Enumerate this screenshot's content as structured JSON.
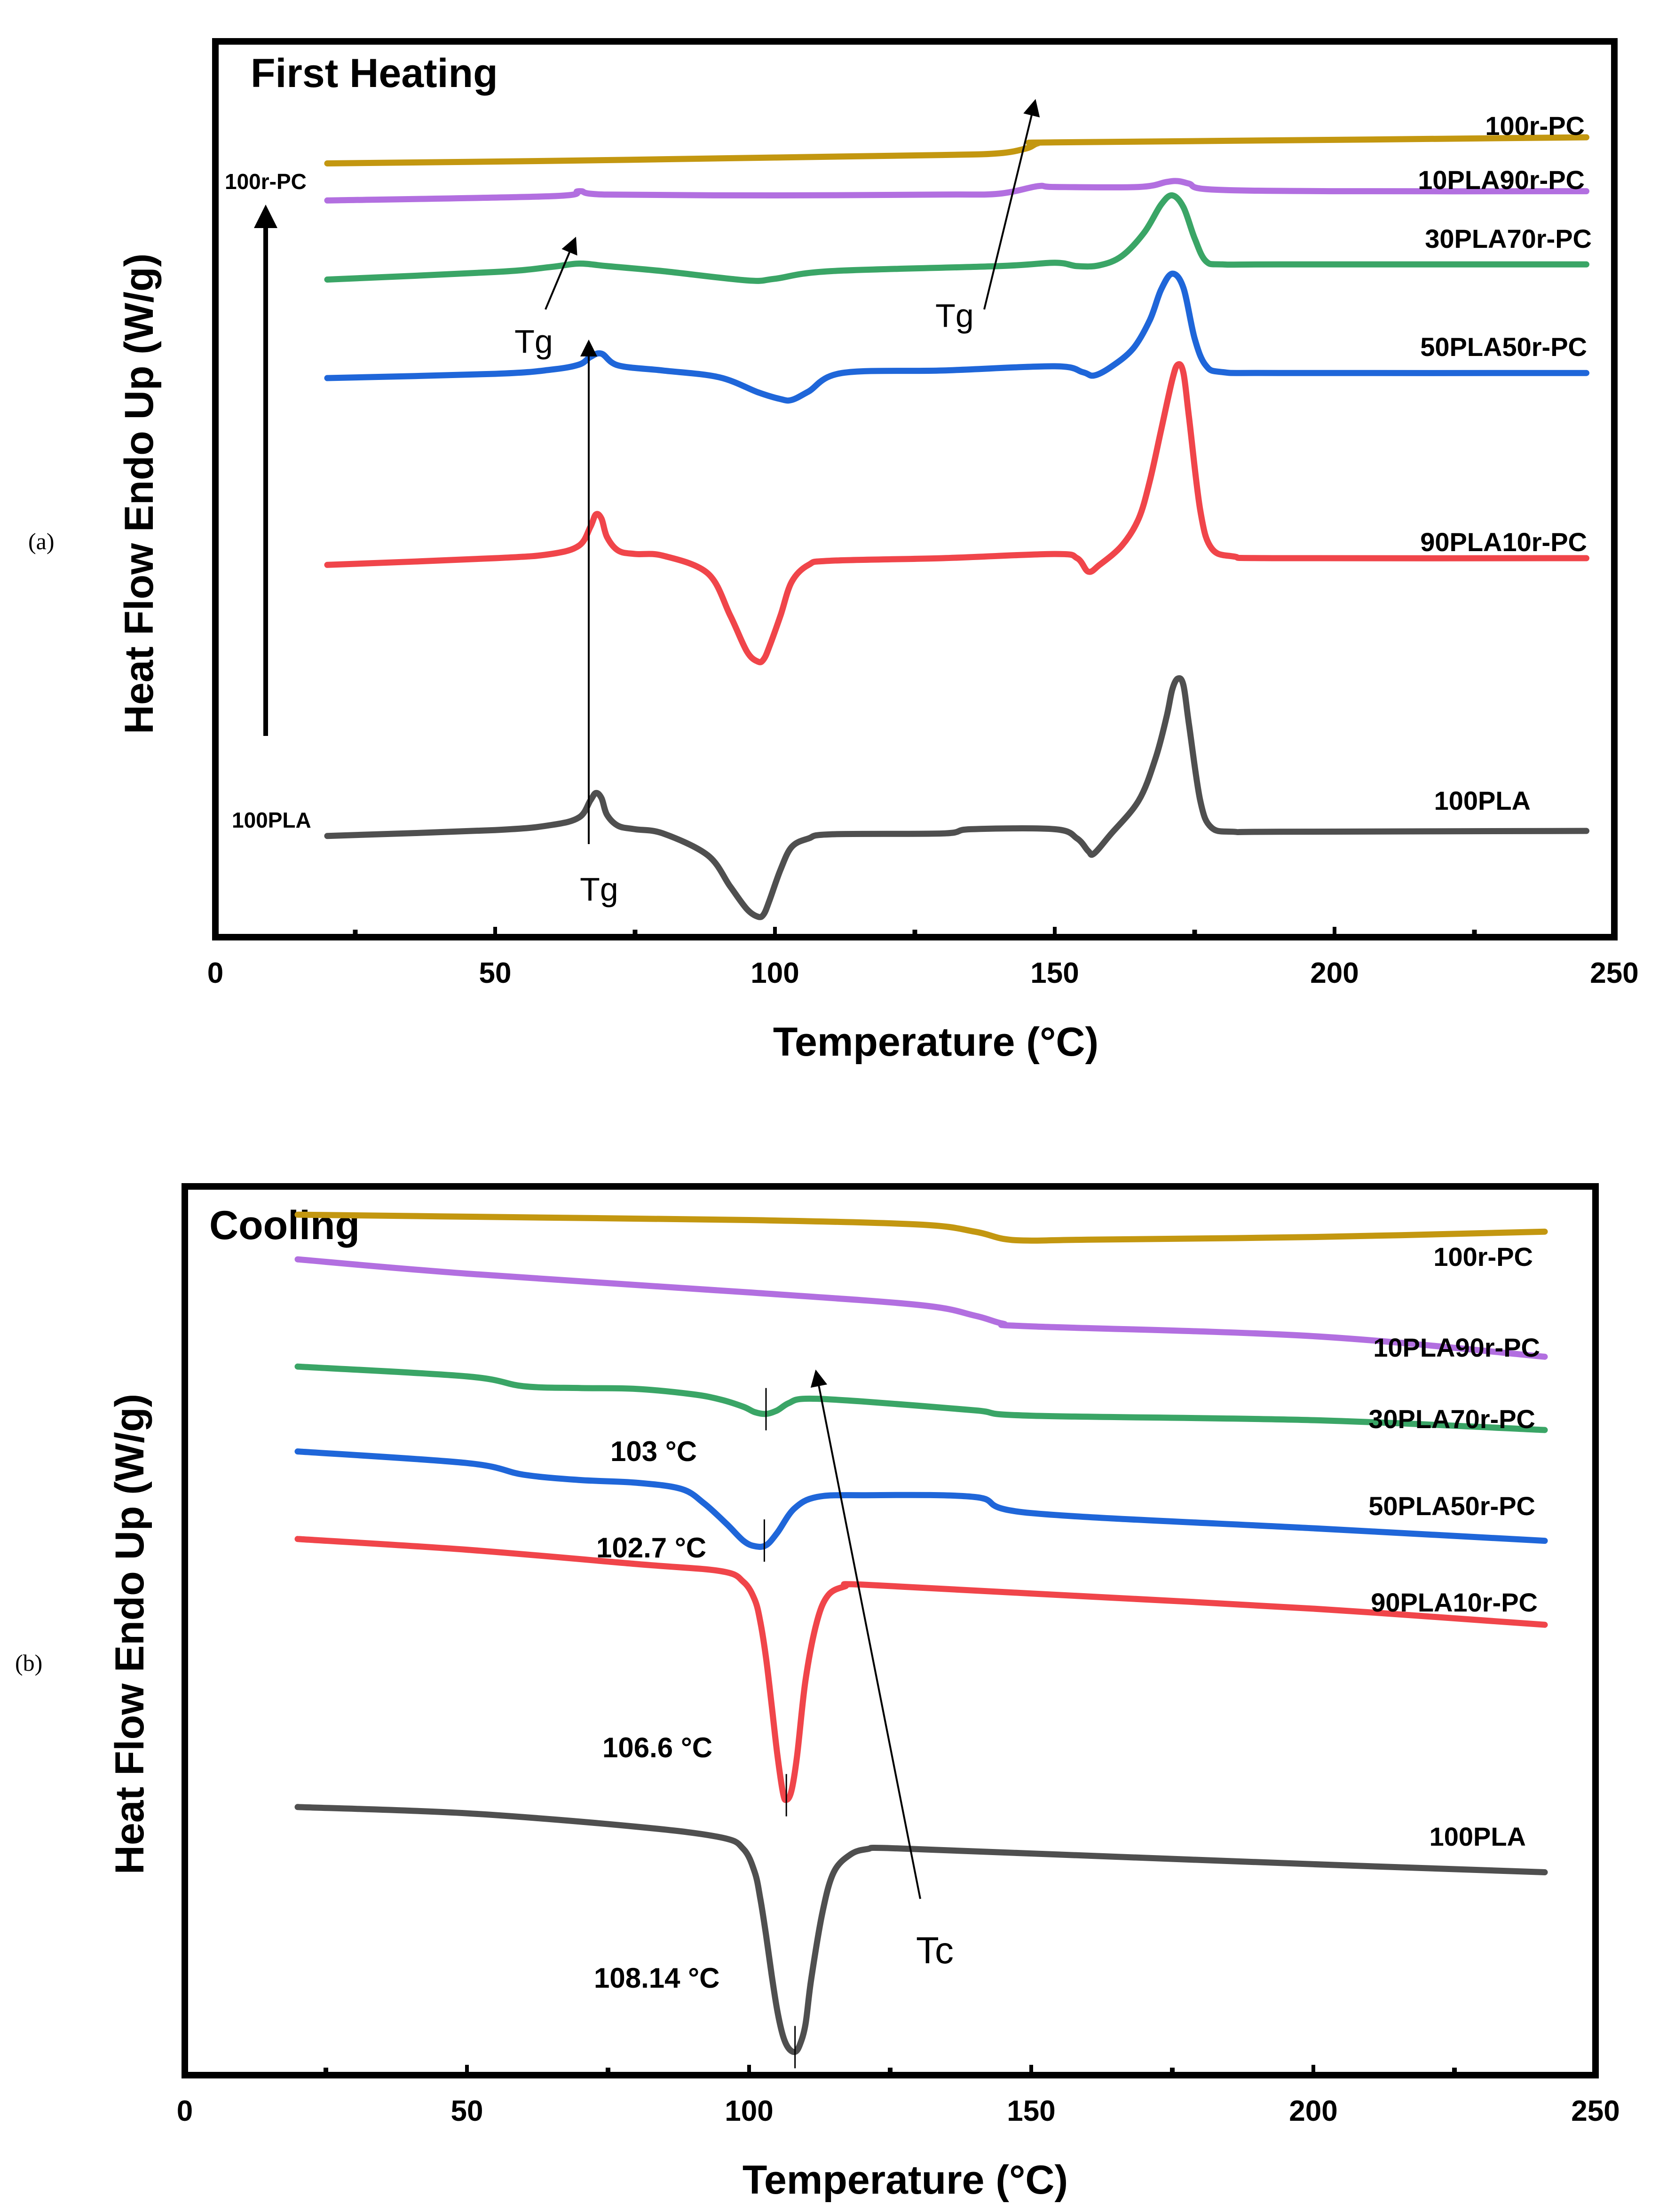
{
  "colors": {
    "100r-PC": "#c39710",
    "10PLA90r-PC": "#b26fe0",
    "30PLA70r-PC": "#3aa566",
    "50PLA50r-PC": "#1f66d9",
    "90PLA10r-PC": "#f0454a",
    "100PLA": "#4f4f4f",
    "frame": "#000000"
  },
  "chart_data": [
    {
      "type": "line",
      "panel_label": "(a)",
      "title": "First Heating",
      "xlabel": "Temperature (°C)",
      "ylabel": "Heat Flow Endo Up (W/g)",
      "xlim": [
        0,
        250
      ],
      "xticks": [
        "0",
        "50",
        "100",
        "150",
        "200",
        "250"
      ],
      "ylim": [
        0,
        100
      ],
      "series": [
        {
          "name": "100r-PC",
          "color": "#c39710",
          "x": [
            20,
            60,
            100,
            130,
            140,
            145,
            147,
            150,
            200,
            245
          ],
          "y": [
            91.2,
            91.5,
            91.9,
            92.2,
            92.4,
            93.0,
            93.6,
            93.7,
            94.0,
            94.3
          ]
        },
        {
          "name": "10PLA90r-PC",
          "color": "#b26fe0",
          "x": [
            20,
            60,
            65,
            70,
            100,
            130,
            140,
            147,
            150,
            165,
            170,
            172,
            174,
            178,
            200,
            245
          ],
          "y": [
            86.8,
            87.3,
            87.9,
            87.5,
            87.4,
            87.5,
            87.6,
            88.5,
            88.4,
            88.4,
            89.0,
            89.1,
            88.8,
            88.1,
            87.9,
            87.9
          ]
        },
        {
          "name": "30PLA70r-PC",
          "color": "#3aa566",
          "x": [
            20,
            50,
            60,
            65,
            70,
            80,
            95,
            100,
            110,
            140,
            150,
            154,
            158,
            162,
            166,
            169,
            171,
            173,
            175,
            177,
            180,
            190,
            245
          ],
          "y": [
            77.4,
            78.3,
            78.9,
            79.3,
            79.0,
            78.4,
            77.3,
            77.5,
            78.4,
            79.0,
            79.4,
            79.0,
            79.1,
            80.2,
            83.0,
            86.3,
            87.4,
            86.0,
            82.3,
            79.6,
            79.2,
            79.2,
            79.2
          ]
        },
        {
          "name": "50PLA50r-PC",
          "color": "#1f66d9",
          "x": [
            20,
            50,
            60,
            65,
            67,
            69,
            72,
            80,
            90,
            97,
            101,
            103,
            106,
            112,
            130,
            150,
            155,
            157,
            160,
            164,
            167,
            169,
            171,
            173,
            175,
            177,
            180,
            190,
            245
          ],
          "y": [
            65.7,
            66.2,
            66.7,
            67.3,
            68.2,
            68.6,
            67.2,
            66.6,
            65.8,
            64.0,
            63.2,
            63.1,
            64.1,
            66.3,
            66.6,
            67.1,
            66.4,
            66.0,
            67.0,
            69.2,
            72.6,
            76.2,
            78.1,
            76.4,
            70.4,
            67.2,
            66.4,
            66.3,
            66.3
          ]
        },
        {
          "name": "90PLA10r-PC",
          "color": "#f0454a",
          "x": [
            20,
            50,
            60,
            65,
            67,
            68,
            69,
            70,
            72,
            75,
            80,
            88,
            92,
            95,
            97,
            98,
            99,
            101,
            103,
            106,
            110,
            130,
            150,
            154,
            156,
            158,
            162,
            165,
            167,
            169,
            171,
            172,
            173,
            174,
            176,
            178,
            182,
            190,
            245
          ],
          "y": [
            43.5,
            44.3,
            44.8,
            45.8,
            48.0,
            49.5,
            49.0,
            46.8,
            45.2,
            44.8,
            44.6,
            42.5,
            37.5,
            33.2,
            32.0,
            32.3,
            33.8,
            37.5,
            41.5,
            43.5,
            44.0,
            44.3,
            44.8,
            44.3,
            42.7,
            43.5,
            45.8,
            49.0,
            53.5,
            59.5,
            65.5,
            67.3,
            66.3,
            61.0,
            50.0,
            45.5,
            44.5,
            44.3,
            44.3
          ]
        },
        {
          "name": "100PLA",
          "color": "#4f4f4f",
          "x": [
            20,
            50,
            60,
            65,
            67,
            68,
            69,
            70,
            72,
            75,
            80,
            88,
            92,
            95,
            97,
            98,
            99,
            101,
            103,
            106,
            110,
            130,
            135,
            150,
            154,
            156,
            157,
            160,
            165,
            168,
            170,
            171,
            172,
            173,
            174,
            176,
            178,
            182,
            190,
            245
          ],
          "y": [
            11.3,
            12.0,
            12.6,
            13.5,
            15.5,
            16.4,
            15.8,
            13.8,
            12.5,
            12.1,
            11.6,
            9.0,
            5.3,
            2.6,
            1.7,
            2.0,
            3.6,
            7.3,
            10.0,
            11.0,
            11.5,
            11.6,
            12.1,
            12.1,
            11.0,
            9.5,
            9.2,
            11.5,
            15.5,
            20.5,
            25.5,
            28.7,
            30.0,
            29.2,
            24.5,
            15.5,
            12.3,
            11.8,
            11.8,
            11.9
          ]
        }
      ],
      "curve_labels": [
        {
          "series": "100r-PC",
          "text": "100r-PC"
        },
        {
          "series": "10PLA90r-PC",
          "text": "10PLA90r-PC"
        },
        {
          "series": "30PLA70r-PC",
          "text": "30PLA70r-PC"
        },
        {
          "series": "50PLA50r-PC",
          "text": "50PLA50r-PC"
        },
        {
          "series": "90PLA10r-PC",
          "text": "90PLA10r-PC"
        },
        {
          "series": "100PLA",
          "text": "100PLA"
        }
      ],
      "annotations": {
        "arrow_top_label": "100r-PC",
        "arrow_bottom_label": "100PLA",
        "tg_labels": [
          "Tg",
          "Tg",
          "Tg"
        ]
      }
    },
    {
      "type": "line",
      "panel_label": "(b)",
      "title": "Cooling",
      "xlabel": "Temperature (°C)",
      "ylabel": "Heat Flow Endo Up (W/g)",
      "xlim": [
        0,
        250
      ],
      "xticks": [
        "0",
        "50",
        "100",
        "150",
        "200",
        "250"
      ],
      "ylim": [
        0,
        100
      ],
      "series": [
        {
          "name": "100r-PC",
          "color": "#c39710",
          "x": [
            20,
            60,
            100,
            130,
            140,
            145,
            150,
            160,
            200,
            241
          ],
          "y": [
            95.1,
            94.8,
            94.5,
            94.0,
            93.2,
            92.4,
            92.2,
            92.3,
            92.6,
            93.2
          ]
        },
        {
          "name": "10PLA90r-PC",
          "color": "#b26fe0",
          "x": [
            20,
            50,
            100,
            130,
            140,
            145,
            150,
            200,
            241
          ],
          "y": [
            90.1,
            88.5,
            86.4,
            85.0,
            83.8,
            82.9,
            82.6,
            81.5,
            79.2
          ]
        },
        {
          "name": "30PLA70r-PC",
          "color": "#3aa566",
          "x": [
            20,
            50,
            60,
            70,
            80,
            90,
            95,
            99,
            101,
            103,
            105,
            107,
            110,
            120,
            140,
            150,
            200,
            241
          ],
          "y": [
            78.1,
            77.0,
            75.9,
            75.7,
            75.6,
            75.0,
            74.4,
            73.6,
            73.0,
            72.8,
            73.2,
            74.0,
            74.5,
            74.2,
            73.2,
            72.6,
            72.1,
            71.0
          ]
        },
        {
          "name": "50PLA50r-PC",
          "color": "#1f66d9",
          "x": [
            20,
            50,
            60,
            70,
            80,
            88,
            92,
            96,
            99,
            101,
            103,
            105,
            108,
            112,
            120,
            140,
            150,
            200,
            241
          ],
          "y": [
            68.6,
            67.3,
            66.0,
            65.4,
            65.1,
            64.4,
            62.8,
            60.5,
            58.6,
            58.0,
            58.1,
            59.5,
            62.2,
            63.5,
            63.7,
            63.5,
            61.7,
            60.0,
            58.6
          ]
        },
        {
          "name": "90PLA10r-PC",
          "color": "#f0454a",
          "x": [
            20,
            50,
            80,
            95,
            99,
            101,
            102,
            103,
            104,
            105,
            106,
            106.6,
            107.5,
            108.5,
            110,
            112,
            114,
            117,
            120,
            150,
            200,
            241
          ],
          "y": [
            58.8,
            57.6,
            56.0,
            55.2,
            54.0,
            52.0,
            49.5,
            45.5,
            40.2,
            34.7,
            30.4,
            29.6,
            30.6,
            34.5,
            43.0,
            49.5,
            52.5,
            53.5,
            53.7,
            52.7,
            51.0,
            49.2
          ]
        },
        {
          "name": "100PLA",
          "color": "#4f4f4f",
          "x": [
            20,
            50,
            80,
            95,
            99,
            101,
            102,
            103,
            104,
            105,
            106,
            107,
            108.14,
            109,
            110,
            111,
            113,
            115,
            118,
            121,
            125,
            150,
            200,
            241
          ],
          "y": [
            28.8,
            28.1,
            26.6,
            25.4,
            24.1,
            21.5,
            18.5,
            14.5,
            10.0,
            6.0,
            3.2,
            1.8,
            1.4,
            2.2,
            4.5,
            9.5,
            17.0,
            21.5,
            23.5,
            24.1,
            24.2,
            23.6,
            22.4,
            21.5
          ]
        }
      ],
      "curve_labels": [
        {
          "series": "100r-PC",
          "text": "100r-PC"
        },
        {
          "series": "10PLA90r-PC",
          "text": "10PLA90r-PC"
        },
        {
          "series": "30PLA70r-PC",
          "text": "30PLA70r-PC"
        },
        {
          "series": "50PLA50r-PC",
          "text": "50PLA50r-PC"
        },
        {
          "series": "90PLA10r-PC",
          "text": "90PLA10r-PC"
        },
        {
          "series": "100PLA",
          "text": "100PLA"
        }
      ],
      "peak_labels": [
        {
          "series": "30PLA70r-PC",
          "x": 103,
          "text": "103 °C"
        },
        {
          "series": "50PLA50r-PC",
          "x": 102.7,
          "text": "102.7 °C"
        },
        {
          "series": "90PLA10r-PC",
          "x": 106.6,
          "text": "106.6 °C"
        },
        {
          "series": "100PLA",
          "x": 108.14,
          "text": "108.14 °C"
        }
      ],
      "annotations": {
        "tc_label": "Tc"
      }
    }
  ]
}
